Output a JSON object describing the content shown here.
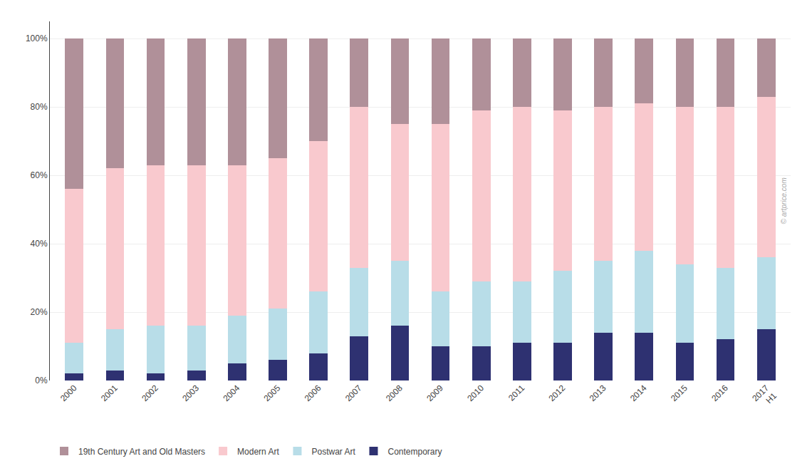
{
  "chart_data": {
    "type": "bar",
    "stacked": true,
    "categories": [
      "2000",
      "2001",
      "2002",
      "2003",
      "2004",
      "2005",
      "2006",
      "2007",
      "2008",
      "2009",
      "2010",
      "2011",
      "2012",
      "2013",
      "2014",
      "2015",
      "2016",
      "2017\nH1"
    ],
    "series": [
      {
        "name": "Contemporary",
        "color": "#2e3171",
        "values": [
          2,
          3,
          2,
          3,
          5,
          6,
          8,
          13,
          16,
          10,
          10,
          11,
          11,
          14,
          14,
          11,
          12,
          15
        ]
      },
      {
        "name": "Postwar Art",
        "color": "#b8dde8",
        "values": [
          9,
          12,
          14,
          13,
          14,
          15,
          18,
          20,
          19,
          16,
          19,
          18,
          21,
          21,
          24,
          23,
          21,
          21
        ]
      },
      {
        "name": "Modern Art",
        "color": "#f9c9ce",
        "values": [
          45,
          47,
          47,
          47,
          44,
          44,
          44,
          47,
          40,
          49,
          50,
          51,
          47,
          45,
          43,
          46,
          47,
          47
        ]
      },
      {
        "name": "19th Century Art and Old Masters",
        "color": "#b09099",
        "values": [
          44,
          38,
          37,
          37,
          37,
          35,
          30,
          20,
          25,
          25,
          21,
          20,
          21,
          20,
          19,
          20,
          20,
          17
        ]
      }
    ],
    "ylim": [
      0,
      105
    ],
    "yticks": [
      {
        "value": 0,
        "label": "0%"
      },
      {
        "value": 20,
        "label": "20%"
      },
      {
        "value": 40,
        "label": "40%"
      },
      {
        "value": 60,
        "label": "60%"
      },
      {
        "value": 80,
        "label": "80%"
      },
      {
        "value": 100,
        "label": "100%"
      }
    ],
    "grid": true,
    "legend": "bottom left",
    "annotations": [
      "© artprice.com"
    ]
  }
}
